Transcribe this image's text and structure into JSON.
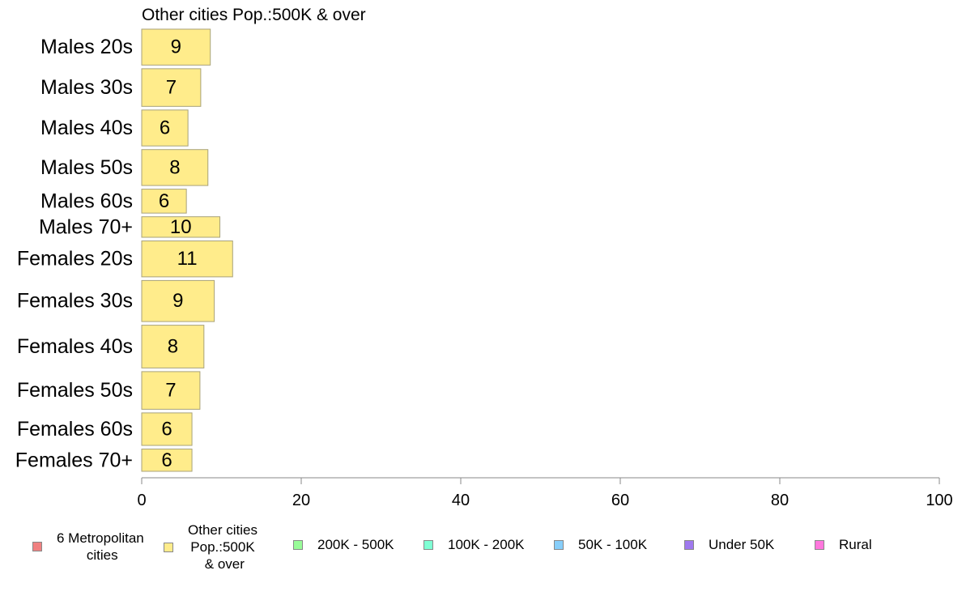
{
  "chart_data": {
    "type": "bar",
    "orientation": "horizontal",
    "title": "Other cities Pop.:500K & over",
    "categories": [
      "Males 20s",
      "Males 30s",
      "Males 40s",
      "Males 50s",
      "Males 60s",
      "Males 70+",
      "Females 20s",
      "Females 30s",
      "Females 40s",
      "Females 50s",
      "Females 60s",
      "Females 70+"
    ],
    "values": [
      9,
      7,
      6,
      8,
      6,
      10,
      11,
      9,
      8,
      7,
      6,
      6
    ],
    "bar_values_precise": [
      8.6,
      7.4,
      5.8,
      8.3,
      5.6,
      9.8,
      11.4,
      9.1,
      7.8,
      7.3,
      6.3,
      6.3
    ],
    "relative_bar_thickness": [
      42,
      44,
      42,
      42,
      28,
      24,
      42,
      48,
      50,
      44,
      38,
      26
    ],
    "xlim": [
      0,
      100
    ],
    "xticks": [
      0,
      20,
      40,
      60,
      80,
      100
    ],
    "bar_color": "#ffec8b",
    "bar_border": "#a8a27a",
    "legend": {
      "placement": "bottom",
      "items": [
        {
          "label": "6 Metropolitan\n cities",
          "color": "#f08080"
        },
        {
          "label": "Other cities\nPop.:500K\n & over",
          "color": "#ffec8b"
        },
        {
          "label": "200K - 500K",
          "color": "#98fb98"
        },
        {
          "label": "100K - 200K",
          "color": "#7fffd4"
        },
        {
          "label": "50K - 100K",
          "color": "#87cefa"
        },
        {
          "label": "Under 50K",
          "color": "#9f79ee"
        },
        {
          "label": "Rural",
          "color": "#ff77dd"
        }
      ]
    }
  }
}
